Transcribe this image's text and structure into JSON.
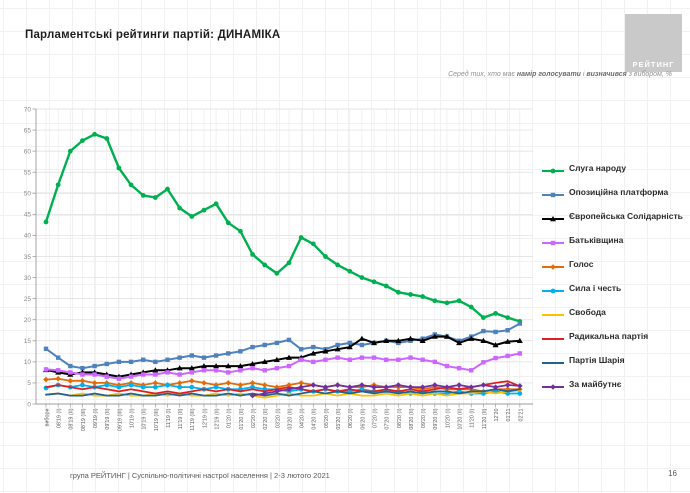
{
  "header": {
    "title": "Парламентські рейтинги партій: ДИНАМІКА",
    "logo_text": "РЕЙТИНГ"
  },
  "subtitle": {
    "prefix": "Серед тих, хто має ",
    "bold1": "намір голосувати",
    "mid": " і ",
    "bold2": "визначився",
    "suffix": " з вибором, %"
  },
  "footer": {
    "text": "група РЕЙТИНГ | Суспільно-політичні настрої населення  | 2-3 лютого 2021",
    "page": "16"
  },
  "chart_data": {
    "type": "line",
    "title": "Парламентські рейтинги партій: ДИНАМІКА",
    "xlabel": "",
    "ylabel": "",
    "ylim": [
      0,
      70
    ],
    "ytick_step": 5,
    "grid": true,
    "legend_position": "right",
    "categories": [
      "вибори",
      "08'19 (I)",
      "08'19 (II)",
      "08'19 (III)",
      "09'19 (I)",
      "09'19 (II)",
      "09'19 (III)",
      "10'19 (I)",
      "10'19 (II)",
      "10'19 (III)",
      "11'19 (I)",
      "11'19 (II)",
      "11'19 (III)",
      "12'19 (I)",
      "12'19 (II)",
      "01'20 (I)",
      "01'20 (II)",
      "02'20 (I)",
      "02'20 (II)",
      "03'20 (I)",
      "03'20 (II)",
      "04'20 (I)",
      "04'20 (II)",
      "05'20 (I)",
      "05'20 (II)",
      "06'20 (I)",
      "06'20 (II)",
      "07'20 (I)",
      "07'20 (II)",
      "08'20 (I)",
      "08'20 (II)",
      "09'20 (I)",
      "09'20 (II)",
      "10'20 (I)",
      "10'20 (II)",
      "11'20 (I)",
      "11'20 (II)",
      "12'20",
      "01'21",
      "02'21"
    ],
    "series": [
      {
        "name": "Слуга народу",
        "color": "#00b050",
        "marker": "circle",
        "width": 2.4,
        "values": [
          43.2,
          52,
          60,
          62.5,
          64,
          63,
          56,
          52,
          49.5,
          49,
          51,
          46.5,
          44.5,
          46,
          47.5,
          43,
          41,
          35.5,
          33,
          31,
          33.5,
          39.5,
          38,
          35,
          33,
          31.5,
          30,
          29,
          28,
          26.5,
          26,
          25.5,
          24.5,
          24,
          24.5,
          23,
          20.5,
          21.5,
          20.5,
          19.6
        ]
      },
      {
        "name": "Опозиційна платформа",
        "color": "#4f81bd",
        "marker": "square",
        "width": 2,
        "values": [
          13.1,
          11,
          9,
          8.5,
          9,
          9.5,
          10,
          10,
          10.5,
          10,
          10.5,
          11,
          11.5,
          11,
          11.5,
          12,
          12.5,
          13.5,
          14,
          14.5,
          15.2,
          13,
          13.5,
          13,
          14,
          14.5,
          14,
          14.5,
          15,
          14.5,
          15,
          15.5,
          16.5,
          16,
          15,
          16,
          17.3,
          17.1,
          17.5,
          19.1
        ]
      },
      {
        "name": "Європейська Солідарність",
        "color": "#000000",
        "marker": "triangle",
        "width": 2,
        "values": [
          8.1,
          7.5,
          7,
          7.5,
          7.5,
          7,
          6.5,
          7,
          7.5,
          8,
          8,
          8.5,
          8.5,
          9,
          9,
          9,
          9,
          9.5,
          10,
          10.5,
          11,
          11,
          12,
          12.5,
          13,
          13.5,
          15.5,
          14.5,
          15,
          15,
          15.5,
          15,
          16,
          16,
          14.5,
          15.5,
          15,
          14,
          14.8,
          15
        ]
      },
      {
        "name": "Батьківщина",
        "color": "#cc66ff",
        "marker": "square",
        "width": 2,
        "values": [
          8.2,
          8,
          7.5,
          7,
          7,
          6.5,
          6,
          6.5,
          7,
          7,
          7.5,
          7,
          7.5,
          8,
          8,
          7.5,
          8,
          8.5,
          8,
          8.5,
          9,
          10.5,
          10,
          10.5,
          11,
          10.5,
          11,
          11,
          10.5,
          10.5,
          11,
          10.5,
          10,
          9,
          8.5,
          8,
          9.9,
          10.9,
          11.4,
          12
        ]
      },
      {
        "name": "Голос",
        "color": "#e36c09",
        "marker": "diamond",
        "width": 1.8,
        "values": [
          5.8,
          6,
          5.5,
          5.5,
          5,
          5,
          4.5,
          5,
          4.5,
          5,
          4.5,
          5,
          5.5,
          5,
          4.5,
          5,
          4.5,
          5,
          4.5,
          4,
          4.5,
          5,
          4.5,
          4,
          4.5,
          4,
          4,
          4.5,
          4,
          4,
          4,
          3.5,
          4,
          3.5,
          3.5,
          3.5,
          3,
          3.5,
          3.5,
          3.5
        ]
      },
      {
        "name": "Сила і честь",
        "color": "#00b0f0",
        "marker": "circle",
        "width": 1.8,
        "values": [
          3.8,
          4.5,
          4,
          4.5,
          4,
          4.5,
          4,
          4.5,
          4,
          4,
          4.5,
          4,
          4,
          3.5,
          4,
          3.5,
          3.5,
          4,
          3.5,
          3.5,
          3,
          3.5,
          3,
          3.5,
          3,
          3,
          3.5,
          3,
          3,
          3,
          2.5,
          3,
          2.5,
          2.5,
          3,
          2.5,
          2.5,
          3,
          2.5,
          2.5
        ]
      },
      {
        "name": "Свобода",
        "color": "#ffc000",
        "marker": "none",
        "width": 1.8,
        "values": [
          2.2,
          2.5,
          2,
          2.5,
          2,
          2,
          2.5,
          2,
          2,
          2.5,
          2,
          2.5,
          2,
          2,
          2.5,
          2,
          2.5,
          2,
          1.5,
          2,
          2.5,
          2,
          2,
          2.5,
          2,
          2.5,
          2,
          2,
          2.5,
          2,
          2.5,
          2,
          2.5,
          2,
          2.5,
          2.5,
          3,
          2.5,
          3,
          3.2
        ]
      },
      {
        "name": "Радикальна партія",
        "color": "#e02020",
        "marker": "none",
        "width": 1.8,
        "values": [
          4,
          4.5,
          4,
          3.5,
          4,
          3.5,
          3,
          3.5,
          3,
          2.5,
          3,
          2.5,
          3,
          3.5,
          3,
          3.5,
          3,
          3.5,
          3,
          3.5,
          4,
          3.5,
          3,
          3.5,
          3,
          3.5,
          3,
          3,
          3.5,
          3,
          3.5,
          3,
          3.5,
          4,
          3.5,
          4,
          4.5,
          5,
          5.4,
          4.2
        ]
      },
      {
        "name": "Партія Шарія",
        "color": "#1f6391",
        "marker": "none",
        "width": 1.8,
        "values": [
          2.2,
          2.5,
          2,
          2,
          2.5,
          2,
          2,
          2.5,
          2,
          2,
          2.5,
          2,
          2.5,
          2,
          2,
          2.5,
          2,
          2.5,
          2,
          2.5,
          2,
          2.5,
          3,
          2.5,
          3,
          2.5,
          3,
          2.5,
          3,
          2.5,
          3,
          2.5,
          3,
          3,
          2.5,
          3,
          3,
          3.5,
          3,
          3.5
        ]
      },
      {
        "name": "За майбутнє",
        "color": "#7030a0",
        "marker": "diamond",
        "width": 1.8,
        "values": [
          null,
          null,
          null,
          null,
          null,
          null,
          null,
          null,
          null,
          null,
          null,
          null,
          null,
          null,
          null,
          null,
          null,
          2,
          2.5,
          3,
          3.5,
          4,
          4.5,
          4,
          4.5,
          4,
          4.5,
          4,
          4,
          4.5,
          4,
          4,
          4.5,
          4,
          4.5,
          4,
          4.5,
          4,
          4.5,
          4.3
        ]
      }
    ]
  }
}
